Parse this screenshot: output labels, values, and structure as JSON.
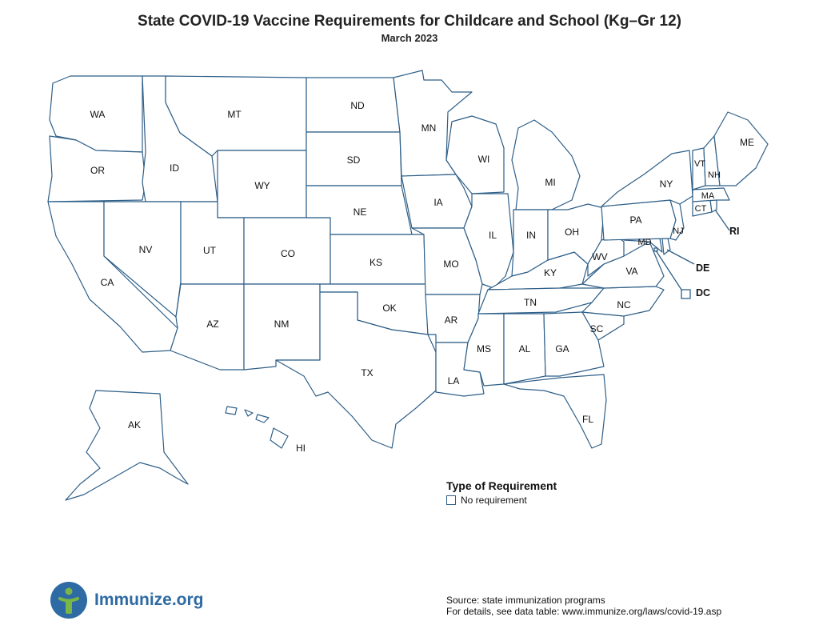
{
  "header": {
    "title": "State COVID-19 Vaccine Requirements for Childcare and School (Kg–Gr 12)",
    "subtitle": "March 2023"
  },
  "map": {
    "colors": {
      "outline": "#2e5f88",
      "fill": "#ffffff"
    },
    "states": [
      {
        "abbr": "WA",
        "category": "No requirement"
      },
      {
        "abbr": "OR",
        "category": "No requirement"
      },
      {
        "abbr": "CA",
        "category": "No requirement"
      },
      {
        "abbr": "ID",
        "category": "No requirement"
      },
      {
        "abbr": "NV",
        "category": "No requirement"
      },
      {
        "abbr": "MT",
        "category": "No requirement"
      },
      {
        "abbr": "WY",
        "category": "No requirement"
      },
      {
        "abbr": "UT",
        "category": "No requirement"
      },
      {
        "abbr": "AZ",
        "category": "No requirement"
      },
      {
        "abbr": "CO",
        "category": "No requirement"
      },
      {
        "abbr": "NM",
        "category": "No requirement"
      },
      {
        "abbr": "ND",
        "category": "No requirement"
      },
      {
        "abbr": "SD",
        "category": "No requirement"
      },
      {
        "abbr": "NE",
        "category": "No requirement"
      },
      {
        "abbr": "KS",
        "category": "No requirement"
      },
      {
        "abbr": "OK",
        "category": "No requirement"
      },
      {
        "abbr": "TX",
        "category": "No requirement"
      },
      {
        "abbr": "MN",
        "category": "No requirement"
      },
      {
        "abbr": "IA",
        "category": "No requirement"
      },
      {
        "abbr": "MO",
        "category": "No requirement"
      },
      {
        "abbr": "AR",
        "category": "No requirement"
      },
      {
        "abbr": "LA",
        "category": "No requirement"
      },
      {
        "abbr": "WI",
        "category": "No requirement"
      },
      {
        "abbr": "IL",
        "category": "No requirement"
      },
      {
        "abbr": "MS",
        "category": "No requirement"
      },
      {
        "abbr": "MI",
        "category": "No requirement"
      },
      {
        "abbr": "IN",
        "category": "No requirement"
      },
      {
        "abbr": "KY",
        "category": "No requirement"
      },
      {
        "abbr": "TN",
        "category": "No requirement"
      },
      {
        "abbr": "AL",
        "category": "No requirement"
      },
      {
        "abbr": "OH",
        "category": "No requirement"
      },
      {
        "abbr": "GA",
        "category": "No requirement"
      },
      {
        "abbr": "FL",
        "category": "No requirement"
      },
      {
        "abbr": "SC",
        "category": "No requirement"
      },
      {
        "abbr": "NC",
        "category": "No requirement"
      },
      {
        "abbr": "VA",
        "category": "No requirement"
      },
      {
        "abbr": "WV",
        "category": "No requirement"
      },
      {
        "abbr": "MD",
        "category": "No requirement"
      },
      {
        "abbr": "DE",
        "category": "No requirement"
      },
      {
        "abbr": "PA",
        "category": "No requirement"
      },
      {
        "abbr": "NJ",
        "category": "No requirement"
      },
      {
        "abbr": "NY",
        "category": "No requirement"
      },
      {
        "abbr": "CT",
        "category": "No requirement"
      },
      {
        "abbr": "RI",
        "category": "No requirement"
      },
      {
        "abbr": "MA",
        "category": "No requirement"
      },
      {
        "abbr": "VT",
        "category": "No requirement"
      },
      {
        "abbr": "NH",
        "category": "No requirement"
      },
      {
        "abbr": "ME",
        "category": "No requirement"
      },
      {
        "abbr": "AK",
        "category": "No requirement"
      },
      {
        "abbr": "HI",
        "category": "No requirement"
      },
      {
        "abbr": "DC",
        "category": "No requirement"
      }
    ]
  },
  "legend": {
    "title": "Type of Requirement",
    "items": [
      {
        "label": "No requirement",
        "color": "#ffffff"
      }
    ]
  },
  "logo": {
    "text": "Immunize.org",
    "icon": "person-i-icon",
    "color": "#2e6aa3",
    "accent": "#7ab648"
  },
  "source": {
    "line1": "Source: state immunization programs",
    "line2": "For details, see data table: www.immunize.org/laws/covid-19.asp"
  }
}
